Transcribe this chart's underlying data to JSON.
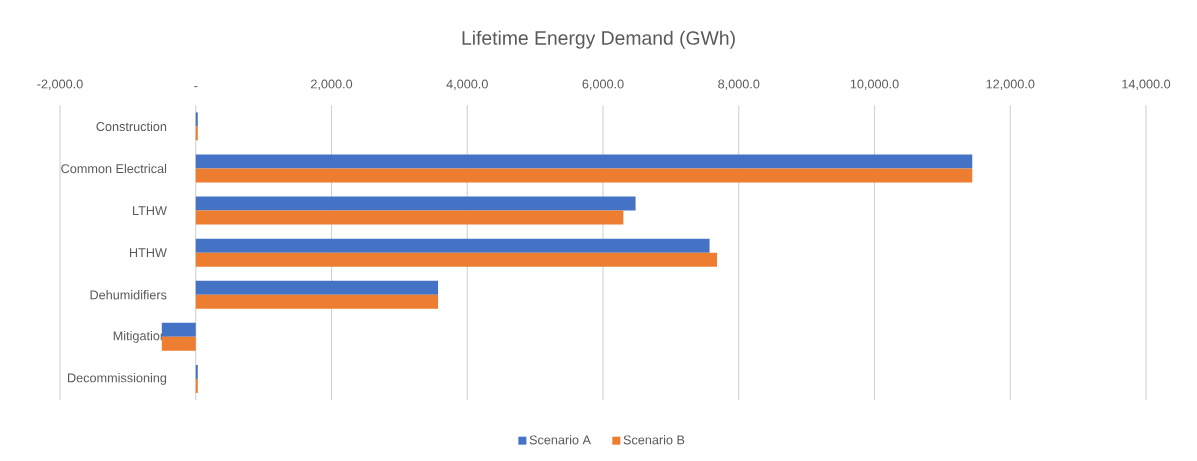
{
  "chart_data": {
    "type": "bar",
    "orientation": "horizontal",
    "title": "Lifetime Energy Demand (GWh)",
    "categories": [
      "Construction",
      "Common Electrical",
      "LTHW",
      "HTHW",
      "Dehumidifiers",
      "Mitigation",
      "Decommissioning"
    ],
    "series": [
      {
        "name": "Scenario A",
        "color": "#4472c4",
        "values": [
          30,
          11440,
          6480,
          7570,
          3570,
          -500,
          30
        ]
      },
      {
        "name": "Scenario B",
        "color": "#ed7d31",
        "values": [
          30,
          11440,
          6300,
          7680,
          3570,
          -500,
          30
        ]
      }
    ],
    "xlim": [
      -2000,
      14000
    ],
    "xticks": [
      {
        "value": -2000,
        "label": "-2,000.0"
      },
      {
        "value": 0,
        "label": "-"
      },
      {
        "value": 2000,
        "label": "2,000.0"
      },
      {
        "value": 4000,
        "label": "4,000.0"
      },
      {
        "value": 6000,
        "label": "6,000.0"
      },
      {
        "value": 8000,
        "label": "8,000.0"
      },
      {
        "value": 10000,
        "label": "10,000.0"
      },
      {
        "value": 12000,
        "label": "12,000.0"
      },
      {
        "value": 14000,
        "label": "14,000.0"
      }
    ],
    "grid": "x",
    "legend": "bottom"
  }
}
